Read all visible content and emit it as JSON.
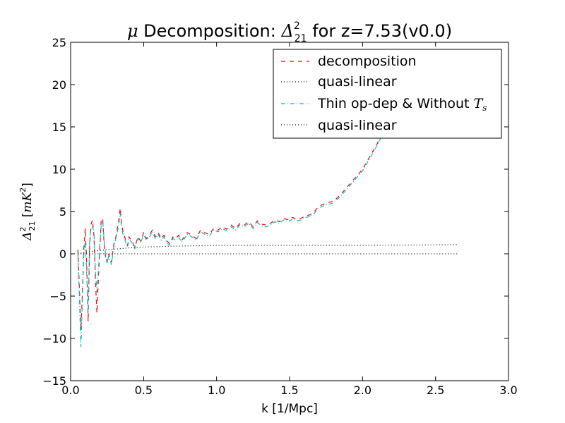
{
  "chart_data": {
    "type": "line",
    "title": {
      "prefix": "μ",
      "main": " Decomposition: ",
      "symbol": "Δ",
      "sup": "2",
      "sub": "21",
      "suffix": " for z=7.53(v0.0)"
    },
    "xlabel": "k [1/Mpc]",
    "ylabel": {
      "symbol": "Δ",
      "sup": "2",
      "sub": "21",
      "units_open": " [",
      "units": "mK",
      "units_sup": "2",
      "units_close": "]"
    },
    "xlim": [
      0.0,
      3.0
    ],
    "ylim": [
      -15,
      25
    ],
    "xticks": [
      "0.0",
      "0.5",
      "1.0",
      "1.5",
      "2.0",
      "2.5",
      "3.0"
    ],
    "xtick_values": [
      0,
      0.5,
      1.0,
      1.5,
      2.0,
      2.5,
      3.0
    ],
    "yticks": [
      "−15",
      "−10",
      "−5",
      "0",
      "5",
      "10",
      "15",
      "20",
      "25"
    ],
    "ytick_values": [
      -15,
      -10,
      -5,
      0,
      5,
      10,
      15,
      20,
      25
    ],
    "grid": false,
    "legend_position": "top-right",
    "legend": [
      {
        "label": "decomposition",
        "color": "#ff0000",
        "style": "dashed"
      },
      {
        "label": "quasi-linear",
        "color": "#000000",
        "style": "dotted"
      },
      {
        "label": "Thin op-dep & Without ",
        "math": "T",
        "math_sub": "s",
        "color": "#00bfbf",
        "style": "dashdot"
      },
      {
        "label": "quasi-linear",
        "color": "#000000",
        "style": "dotted"
      }
    ],
    "series": [
      {
        "name": "decomposition",
        "color": "#ff0000",
        "style": "dashed",
        "x": [
          0.05,
          0.06,
          0.07,
          0.08,
          0.09,
          0.1,
          0.11,
          0.12,
          0.13,
          0.14,
          0.15,
          0.16,
          0.17,
          0.18,
          0.19,
          0.2,
          0.21,
          0.22,
          0.23,
          0.24,
          0.25,
          0.26,
          0.27,
          0.28,
          0.29,
          0.3,
          0.31,
          0.32,
          0.33,
          0.34,
          0.35,
          0.36,
          0.37,
          0.38,
          0.39,
          0.4,
          0.42,
          0.44,
          0.46,
          0.48,
          0.5,
          0.52,
          0.54,
          0.56,
          0.58,
          0.6,
          0.62,
          0.64,
          0.66,
          0.68,
          0.7,
          0.72,
          0.74,
          0.76,
          0.78,
          0.8,
          0.83,
          0.86,
          0.89,
          0.92,
          0.95,
          0.98,
          1.01,
          1.04,
          1.07,
          1.1,
          1.13,
          1.16,
          1.19,
          1.22,
          1.25,
          1.28,
          1.31,
          1.34,
          1.37,
          1.4,
          1.43,
          1.46,
          1.49,
          1.52,
          1.55,
          1.58,
          1.61,
          1.64,
          1.67,
          1.7,
          1.75,
          1.8,
          1.85,
          1.9,
          1.95,
          2.0,
          2.05,
          2.1,
          2.15,
          2.2,
          2.25,
          2.3,
          2.35,
          2.4,
          2.44
        ],
        "y": [
          0.5,
          -4.0,
          -9.0,
          -5.0,
          0.5,
          3.0,
          -1.0,
          -8.0,
          1.0,
          3.5,
          4.0,
          2.0,
          -3.0,
          -7.0,
          -3.0,
          0.5,
          4.2,
          4.0,
          1.0,
          -0.5,
          -1.0,
          0.0,
          -0.5,
          -1.0,
          0.5,
          1.5,
          2.0,
          3.0,
          4.0,
          5.4,
          3.5,
          2.5,
          2.0,
          1.5,
          1.0,
          2.0,
          1.5,
          0.8,
          2.0,
          1.5,
          2.5,
          1.8,
          2.2,
          2.8,
          2.0,
          2.5,
          1.8,
          2.2,
          1.5,
          1.2,
          2.0,
          1.8,
          2.2,
          1.6,
          2.0,
          2.5,
          2.2,
          1.8,
          2.8,
          2.5,
          2.3,
          3.0,
          2.8,
          3.2,
          2.9,
          3.4,
          3.0,
          3.6,
          3.4,
          3.8,
          3.2,
          3.9,
          3.5,
          3.4,
          3.6,
          4.0,
          3.8,
          4.2,
          4.0,
          4.3,
          4.1,
          4.2,
          4.5,
          4.6,
          5.0,
          5.6,
          6.0,
          6.2,
          7.0,
          8.0,
          9.0,
          10.0,
          11.5,
          13.0,
          14.8,
          16.5,
          17.5,
          18.6,
          20.0,
          21.0,
          22.0
        ]
      },
      {
        "name": "Thin op-dep & Without T_s",
        "color": "#00bfbf",
        "style": "dashdot",
        "x": [
          0.05,
          0.06,
          0.07,
          0.08,
          0.09,
          0.1,
          0.11,
          0.12,
          0.13,
          0.14,
          0.15,
          0.16,
          0.17,
          0.18,
          0.19,
          0.2,
          0.21,
          0.22,
          0.23,
          0.24,
          0.25,
          0.26,
          0.27,
          0.28,
          0.29,
          0.3,
          0.31,
          0.32,
          0.33,
          0.34,
          0.35,
          0.36,
          0.37,
          0.38,
          0.39,
          0.4,
          0.42,
          0.44,
          0.46,
          0.48,
          0.5,
          0.52,
          0.54,
          0.56,
          0.58,
          0.6,
          0.62,
          0.64,
          0.66,
          0.68,
          0.7,
          0.72,
          0.74,
          0.76,
          0.78,
          0.8,
          0.83,
          0.86,
          0.89,
          0.92,
          0.95,
          0.98,
          1.01,
          1.04,
          1.07,
          1.1,
          1.13,
          1.16,
          1.19,
          1.22,
          1.25,
          1.28,
          1.31,
          1.34,
          1.37,
          1.4,
          1.43,
          1.46,
          1.49,
          1.52,
          1.55,
          1.58,
          1.61,
          1.64,
          1.67,
          1.7,
          1.75,
          1.8,
          1.85,
          1.9,
          1.95,
          2.0,
          2.05,
          2.1,
          2.15,
          2.2,
          2.25,
          2.3,
          2.35,
          2.4,
          2.44
        ],
        "y": [
          0.0,
          -5.0,
          -11.0,
          -6.0,
          0.0,
          1.5,
          -2.0,
          -7.0,
          1.5,
          3.0,
          3.2,
          2.5,
          -2.0,
          -4.5,
          -2.0,
          1.0,
          3.5,
          3.8,
          1.5,
          -0.2,
          -1.2,
          -0.3,
          -0.8,
          -1.3,
          0.2,
          1.2,
          1.8,
          2.5,
          3.5,
          4.8,
          3.0,
          2.2,
          1.8,
          1.2,
          0.8,
          1.8,
          1.3,
          0.6,
          1.8,
          1.3,
          2.3,
          1.6,
          2.0,
          2.6,
          1.8,
          2.3,
          1.6,
          2.0,
          1.3,
          1.0,
          1.8,
          1.6,
          2.0,
          1.4,
          1.8,
          2.3,
          2.0,
          1.6,
          2.6,
          2.3,
          2.1,
          2.8,
          2.6,
          3.0,
          2.7,
          3.2,
          2.8,
          3.4,
          3.2,
          3.6,
          3.0,
          3.7,
          3.3,
          3.2,
          3.4,
          3.8,
          3.6,
          4.0,
          3.8,
          4.1,
          3.9,
          4.0,
          4.3,
          4.4,
          4.8,
          5.4,
          5.8,
          6.0,
          6.8,
          7.8,
          8.8,
          9.8,
          11.3,
          12.8,
          14.6,
          16.3,
          17.3,
          18.4,
          19.8,
          20.8,
          21.8
        ]
      },
      {
        "name": "quasi-linear",
        "color": "#000000",
        "style": "dotted",
        "x": [
          0.05,
          0.1,
          0.2,
          0.3,
          0.4,
          0.5,
          0.7,
          1.0,
          1.5,
          2.0,
          2.5,
          2.65
        ],
        "y": [
          0.0,
          0.2,
          0.4,
          0.55,
          0.7,
          0.8,
          0.9,
          1.0,
          1.0,
          1.0,
          1.05,
          1.1
        ]
      },
      {
        "name": "quasi-linear",
        "color": "#000000",
        "style": "dotted",
        "x": [
          0.05,
          0.5,
          1.0,
          1.5,
          2.0,
          2.5,
          2.65
        ],
        "y": [
          0.0,
          0.0,
          0.0,
          0.0,
          0.0,
          0.0,
          0.0
        ]
      }
    ]
  }
}
